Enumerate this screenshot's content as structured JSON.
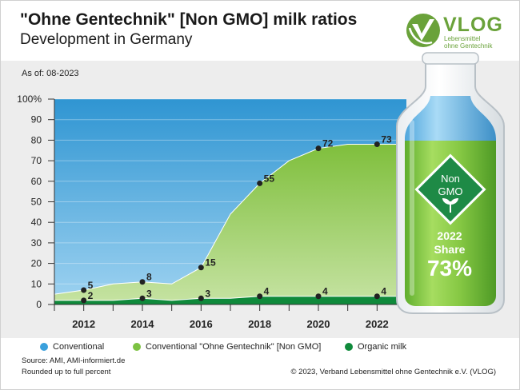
{
  "header": {
    "title": "\"Ohne Gentechnik\" [Non GMO] milk ratios",
    "subtitle": "Development in Germany"
  },
  "logo": {
    "word": "VLOG",
    "line1": "Lebensmittel",
    "line2": "ohne Gentechnik"
  },
  "as_of": "As of: 08-2023",
  "bottle": {
    "badge_line1": "Non",
    "badge_line2": "GMO",
    "year": "2022",
    "share_label": "Share",
    "share_value": "73%"
  },
  "legend": [
    {
      "label": "Conventional",
      "color": "#3aa0dc"
    },
    {
      "label": "Conventional \"Ohne Gentechnik\" [Non GMO]",
      "color": "#7cc242"
    },
    {
      "label": "Organic milk",
      "color": "#0f8a3b"
    }
  ],
  "footer": {
    "source": "Source: AMI, AMI-informiert.de",
    "rounding": "Rounded up to full percent",
    "copyright": "© 2023, Verband Lebensmittel ohne Gentechnik e.V. (VLOG)"
  },
  "colors": {
    "conventional": "#3a9ed8",
    "non_gmo": "#8cc63f",
    "organic": "#0f8a3b",
    "bottle_green": "#7cc242",
    "badge": "#1e8a46"
  },
  "chart_data": {
    "type": "area",
    "x": [
      2011,
      2012,
      2013,
      2014,
      2015,
      2016,
      2017,
      2018,
      2019,
      2020,
      2021,
      2022,
      2023
    ],
    "xticks": [
      2012,
      2014,
      2016,
      2018,
      2020,
      2022
    ],
    "xtick_labels": [
      "2012",
      "2014",
      "2016",
      "2018",
      "2020",
      "2022"
    ],
    "ylim": [
      0,
      100
    ],
    "yticks": [
      0,
      10,
      20,
      30,
      40,
      50,
      60,
      70,
      80,
      90,
      100
    ],
    "ytick_labels": [
      "0",
      "10",
      "20",
      "30",
      "40",
      "50",
      "60",
      "70",
      "80",
      "90",
      "100%"
    ],
    "series": [
      {
        "name": "Organic milk",
        "values": [
          2,
          2,
          2,
          3,
          2,
          3,
          3,
          4,
          4,
          4,
          4,
          4,
          4
        ]
      },
      {
        "name": "Conventional \"Ohne Gentechnik\" [Non GMO]",
        "values": [
          5,
          7,
          10,
          11,
          10,
          18,
          44,
          59,
          70,
          76,
          78,
          78,
          78
        ]
      }
    ],
    "labeled_points": [
      {
        "x": 2012,
        "y": 7,
        "label": "5"
      },
      {
        "x": 2012,
        "y": 2,
        "label": "2"
      },
      {
        "x": 2014,
        "y": 11,
        "label": "8"
      },
      {
        "x": 2014,
        "y": 3,
        "label": "3"
      },
      {
        "x": 2016,
        "y": 18,
        "label": "15"
      },
      {
        "x": 2016,
        "y": 3,
        "label": "3"
      },
      {
        "x": 2018,
        "y": 59,
        "label": "55"
      },
      {
        "x": 2018,
        "y": 4,
        "label": "4"
      },
      {
        "x": 2020,
        "y": 76,
        "label": "72"
      },
      {
        "x": 2020,
        "y": 4,
        "label": "4"
      },
      {
        "x": 2022,
        "y": 78,
        "label": "73"
      },
      {
        "x": 2022,
        "y": 4,
        "label": "4"
      }
    ]
  }
}
